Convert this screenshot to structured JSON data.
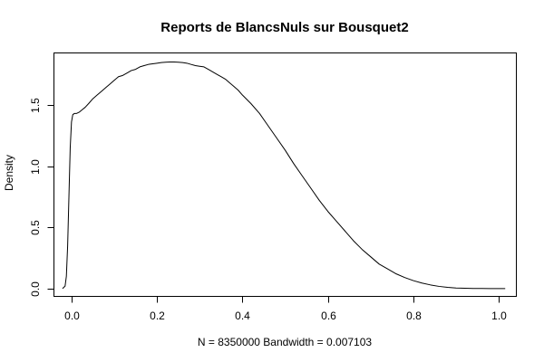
{
  "chart_data": {
    "type": "line",
    "title": "Reports de BlancsNuls sur Bousquet2",
    "xlabel": "N = 8350000   Bandwidth = 0.007103",
    "ylabel": "Density",
    "xlim": [
      -0.04,
      1.04
    ],
    "ylim": [
      -0.06,
      1.92
    ],
    "grid": false,
    "legend": "none",
    "x_ticks": [
      0.0,
      0.2,
      0.4,
      0.6,
      0.8,
      1.0
    ],
    "x_tick_labels": [
      "0.0",
      "0.2",
      "0.4",
      "0.6",
      "0.8",
      "1.0"
    ],
    "y_ticks": [
      0.0,
      0.5,
      1.0,
      1.5
    ],
    "y_tick_labels": [
      "0.0",
      "0.5",
      "1.0",
      "1.5"
    ],
    "line_color": "#000000",
    "series": [
      {
        "x": [
          -0.021,
          -0.015,
          -0.012,
          -0.009,
          -0.006,
          -0.003,
          0.0,
          0.003,
          0.007,
          0.012,
          0.018,
          0.025,
          0.032,
          0.04,
          0.05,
          0.06,
          0.07,
          0.08,
          0.09,
          0.1,
          0.11,
          0.12,
          0.13,
          0.14,
          0.15,
          0.16,
          0.17,
          0.18,
          0.19,
          0.2,
          0.21,
          0.22,
          0.23,
          0.24,
          0.25,
          0.26,
          0.27,
          0.28,
          0.29,
          0.3,
          0.31,
          0.32,
          0.33,
          0.34,
          0.35,
          0.36,
          0.37,
          0.38,
          0.39,
          0.4,
          0.42,
          0.44,
          0.46,
          0.48,
          0.5,
          0.52,
          0.54,
          0.56,
          0.58,
          0.6,
          0.62,
          0.64,
          0.66,
          0.68,
          0.7,
          0.72,
          0.74,
          0.76,
          0.78,
          0.8,
          0.82,
          0.84,
          0.86,
          0.88,
          0.9,
          0.92,
          0.94,
          0.96,
          0.98,
          1.0,
          1.015
        ],
        "y": [
          0.0,
          0.02,
          0.1,
          0.35,
          0.75,
          1.15,
          1.36,
          1.42,
          1.43,
          1.43,
          1.44,
          1.46,
          1.48,
          1.51,
          1.55,
          1.58,
          1.61,
          1.64,
          1.67,
          1.7,
          1.73,
          1.74,
          1.76,
          1.78,
          1.79,
          1.81,
          1.82,
          1.83,
          1.835,
          1.84,
          1.845,
          1.848,
          1.85,
          1.85,
          1.848,
          1.845,
          1.84,
          1.83,
          1.82,
          1.815,
          1.81,
          1.79,
          1.77,
          1.75,
          1.73,
          1.71,
          1.68,
          1.65,
          1.62,
          1.58,
          1.51,
          1.43,
          1.33,
          1.23,
          1.13,
          1.02,
          0.92,
          0.82,
          0.72,
          0.63,
          0.55,
          0.47,
          0.39,
          0.32,
          0.26,
          0.2,
          0.16,
          0.12,
          0.09,
          0.065,
          0.045,
          0.03,
          0.018,
          0.01,
          0.005,
          0.003,
          0.001,
          0.0005,
          0.0002,
          0.0001,
          0.0
        ]
      }
    ]
  }
}
